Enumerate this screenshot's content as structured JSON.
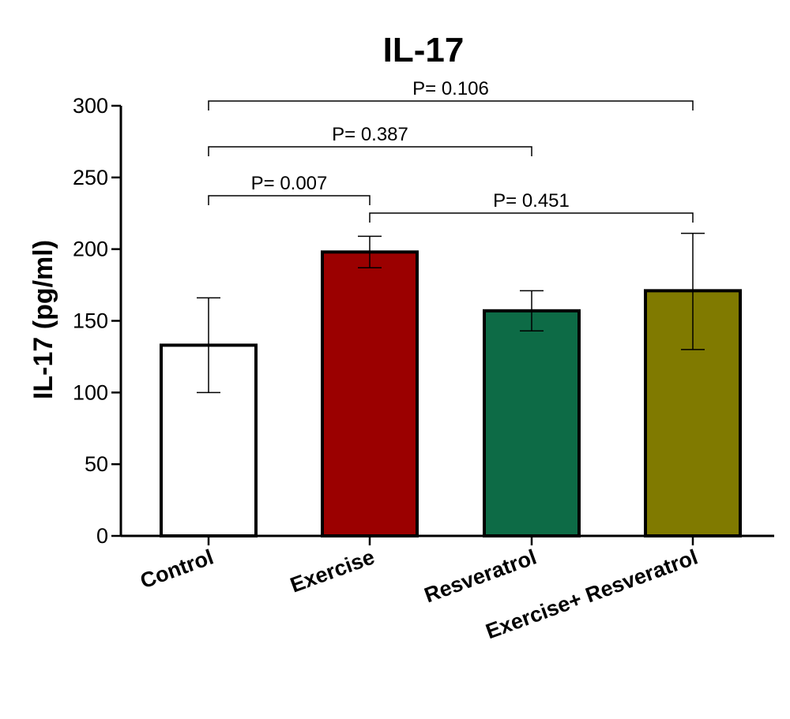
{
  "chart_data": {
    "type": "bar",
    "title": "IL-17",
    "ylabel": "IL-17  (pg/ml)",
    "xlabel": "",
    "ylim": [
      0,
      300
    ],
    "yticks": [
      0,
      50,
      100,
      150,
      200,
      250,
      300
    ],
    "categories": [
      "Control",
      "Exercise",
      "Resveratrol",
      "Exercise+ Resveratrol"
    ],
    "values": [
      133,
      198,
      157,
      171
    ],
    "error_upper": [
      166,
      209,
      171,
      211
    ],
    "error_lower": [
      100,
      187,
      143,
      130
    ],
    "colors": [
      "#ffffff",
      "#9b0000",
      "#0d6b46",
      "#807a00"
    ],
    "grid": false,
    "legend": "none",
    "annotations": [
      {
        "text": "P= 0.106",
        "from": 0,
        "to": 3,
        "y": 128
      },
      {
        "text": "P= 0.387",
        "from": 0,
        "to": 2,
        "y": 186
      },
      {
        "text": "P= 0.007",
        "from": 0,
        "to": 1,
        "y": 248
      },
      {
        "text": "P= 0.451",
        "from": 1,
        "to": 3,
        "y": 270
      }
    ]
  }
}
